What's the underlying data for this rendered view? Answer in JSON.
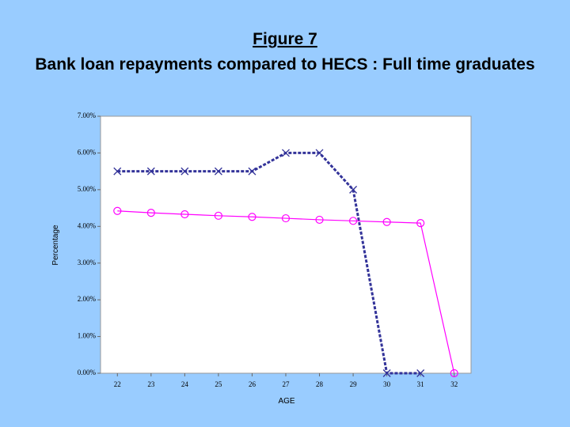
{
  "chart_data": {
    "type": "line",
    "title": "Figure 7",
    "subtitle": "Bank loan repayments compared to HECS : Full time graduates",
    "x_label": "AGE",
    "y_label": "Percentage",
    "x": [
      22,
      23,
      24,
      25,
      26,
      27,
      28,
      29,
      30,
      31,
      32
    ],
    "xlim": [
      21.5,
      32.5
    ],
    "xticks": [
      22,
      23,
      24,
      25,
      26,
      27,
      28,
      29,
      30,
      31,
      32
    ],
    "ylim": [
      0,
      7
    ],
    "yticks": [
      {
        "value": 0,
        "label": "0.00%"
      },
      {
        "value": 1,
        "label": "1.00%"
      },
      {
        "value": 2,
        "label": "2.00%"
      },
      {
        "value": 3,
        "label": "3.00%"
      },
      {
        "value": 4,
        "label": "4.00%"
      },
      {
        "value": 5,
        "label": "5.00%"
      },
      {
        "value": 6,
        "label": "6.00%"
      },
      {
        "value": 7,
        "label": "7.00%"
      }
    ],
    "grid": false,
    "series": [
      {
        "color": "#333399",
        "marker": "x",
        "dashed": true,
        "values": [
          5.5,
          5.5,
          5.5,
          5.5,
          5.5,
          6.0,
          6.0,
          5.0,
          0,
          0,
          null
        ]
      },
      {
        "color": "#ff00ff",
        "marker": "circle",
        "dashed": false,
        "values": [
          4.42,
          4.37,
          4.33,
          4.29,
          4.26,
          4.22,
          4.18,
          4.15,
          4.12,
          4.09,
          0
        ]
      }
    ]
  }
}
